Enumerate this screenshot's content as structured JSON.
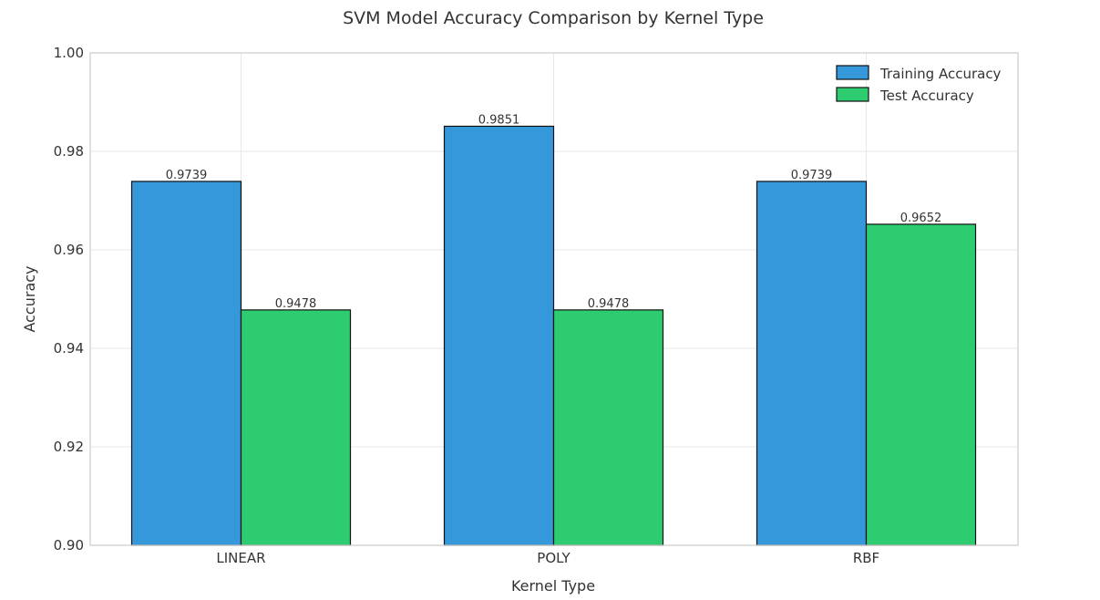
{
  "chart_data": {
    "type": "bar",
    "title": "SVM Model Accuracy Comparison by Kernel Type",
    "xlabel": "Kernel Type",
    "ylabel": "Accuracy",
    "categories": [
      "LINEAR",
      "POLY",
      "RBF"
    ],
    "series": [
      {
        "name": "Training Accuracy",
        "values": [
          0.9739,
          0.9851,
          0.9739
        ],
        "labels": [
          "0.9739",
          "0.9851",
          "0.9739"
        ],
        "color": "#3498db"
      },
      {
        "name": "Test Accuracy",
        "values": [
          0.9478,
          0.9478,
          0.9652
        ],
        "labels": [
          "0.9478",
          "0.9478",
          "0.9652"
        ],
        "color": "#2ecc71"
      }
    ],
    "ylim": [
      0.9,
      1.0
    ],
    "yticks": [
      "0.90",
      "0.92",
      "0.94",
      "0.96",
      "0.98",
      "1.00"
    ],
    "grid": true,
    "legend_position": "top-right"
  }
}
